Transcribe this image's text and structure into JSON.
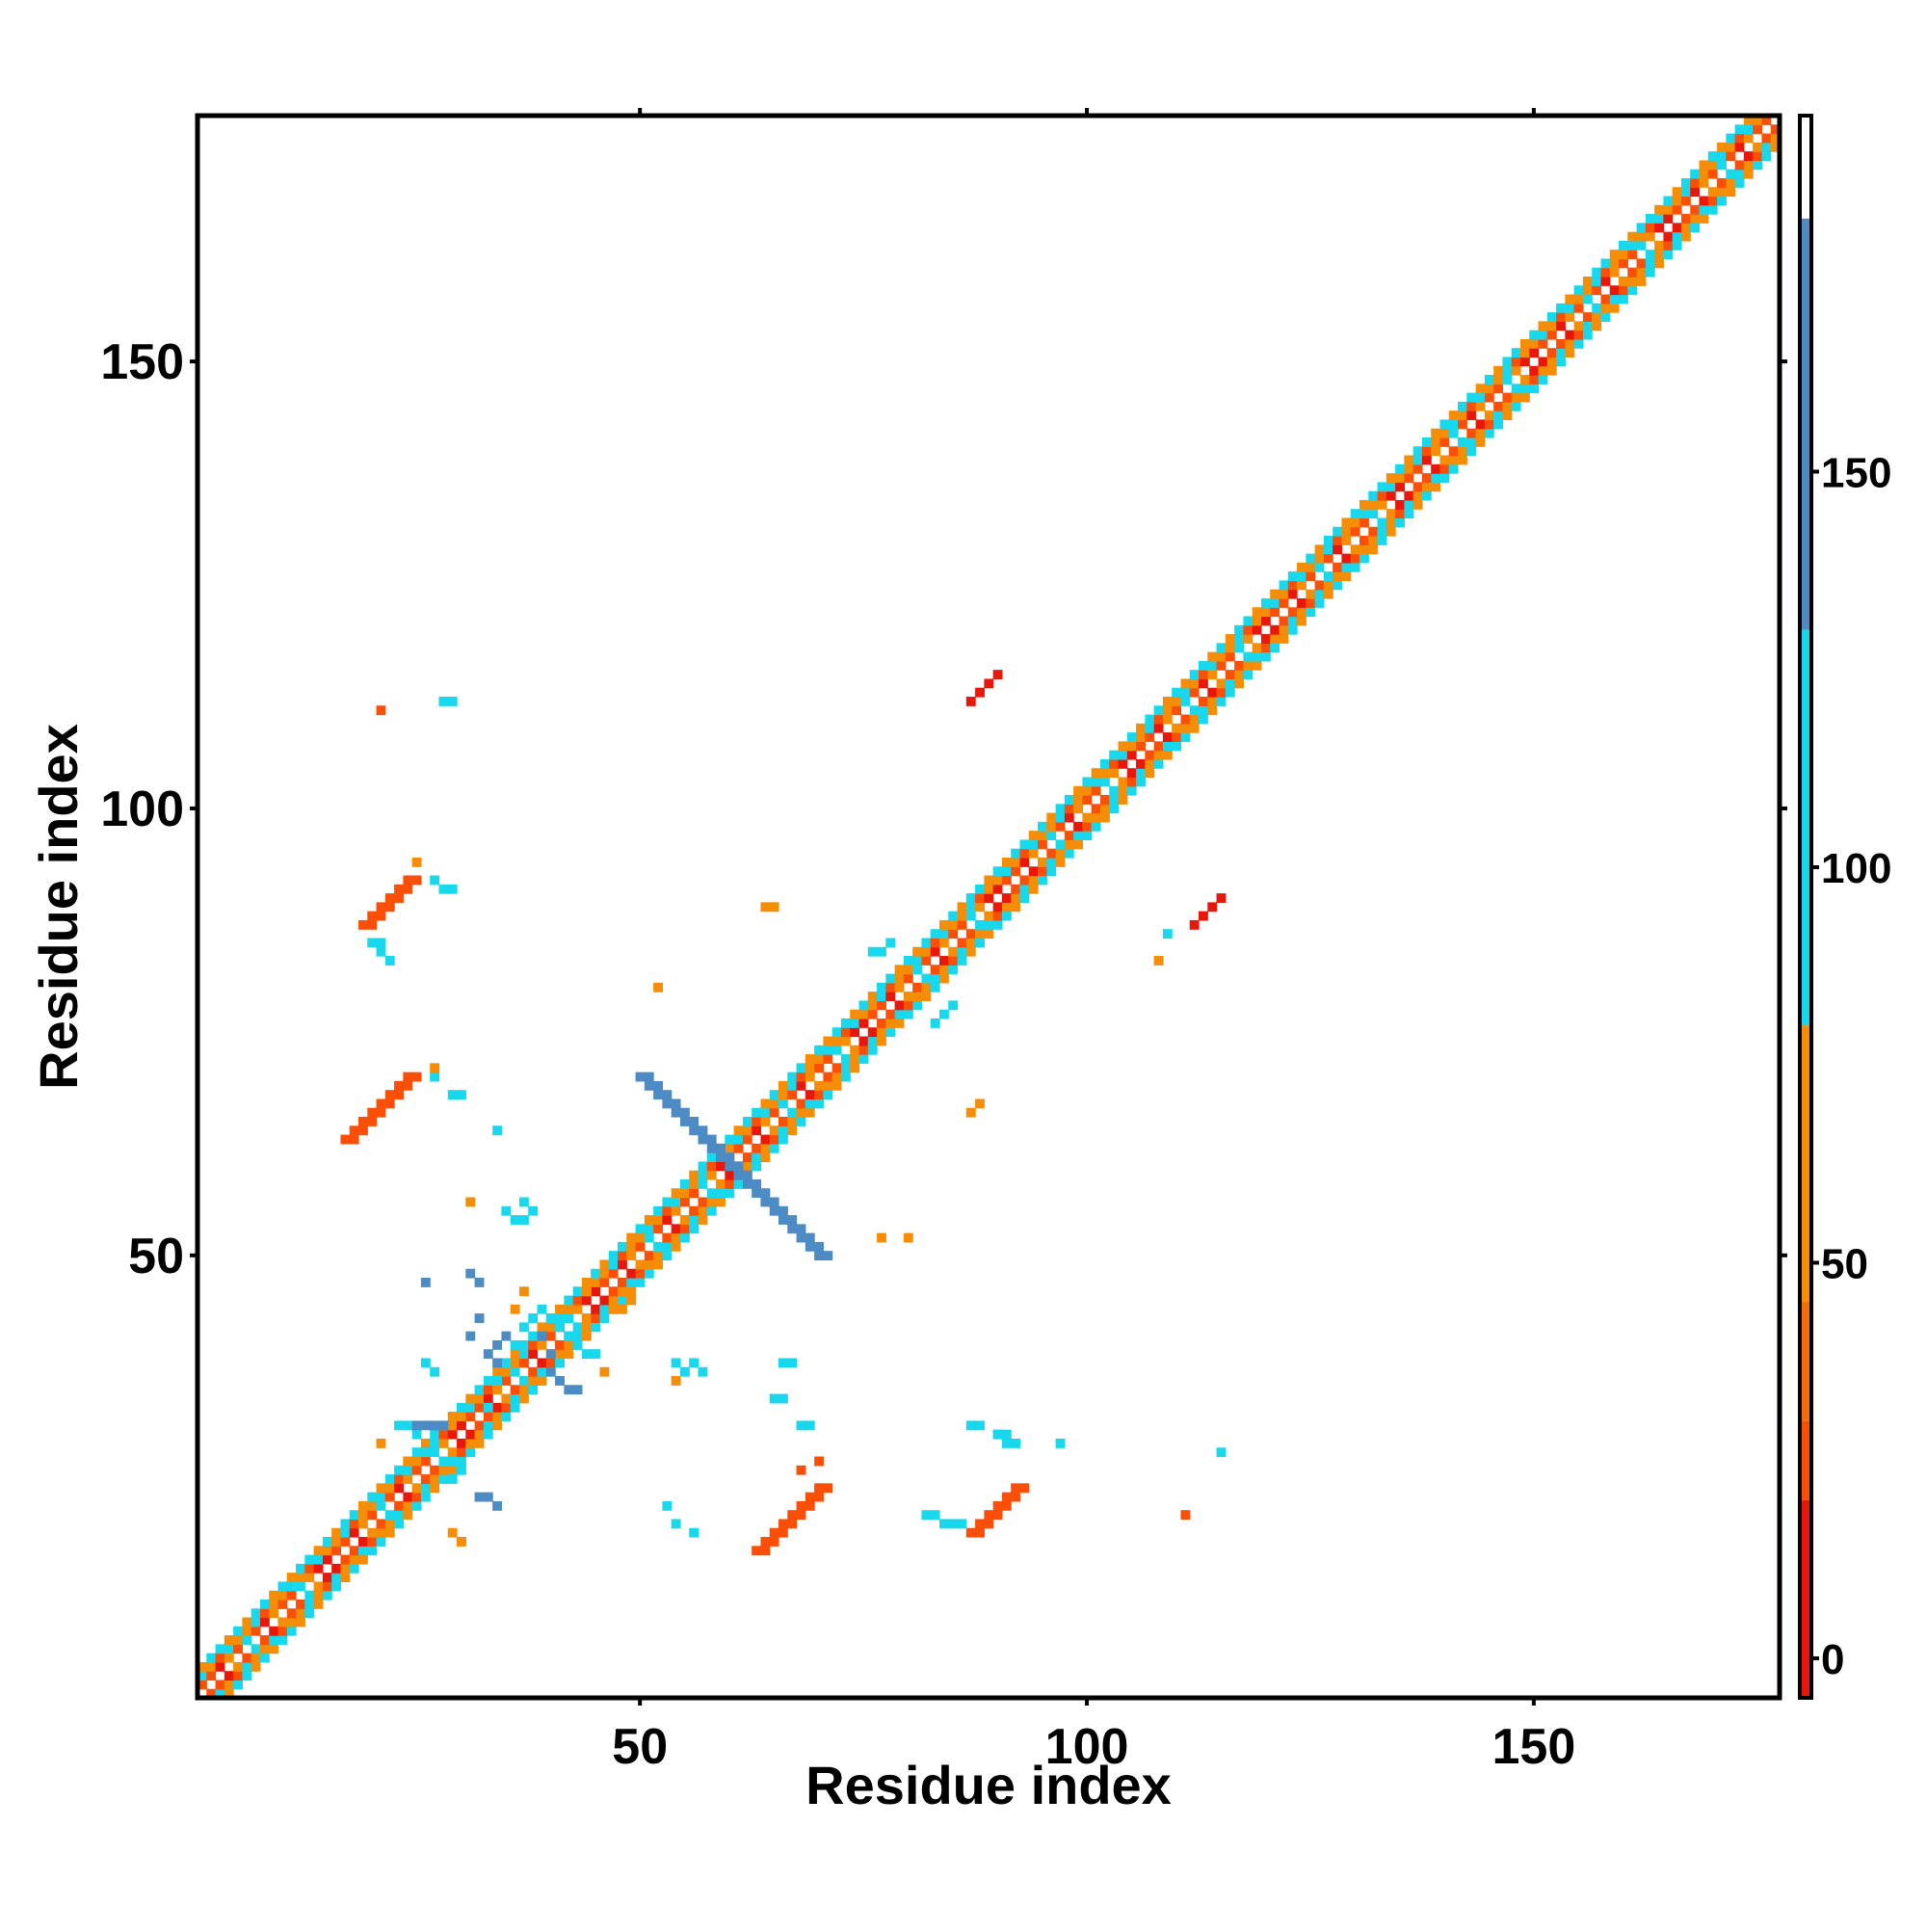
{
  "chart_data": {
    "type": "heatmap",
    "title": "",
    "xlabel": "Residue index",
    "ylabel": "Residue index",
    "xlim": [
      0.5,
      177.5
    ],
    "ylim": [
      0.5,
      177.5
    ],
    "xticks": [
      50,
      100,
      150
    ],
    "yticks": [
      50,
      100,
      150
    ],
    "grid": false,
    "colorbar": {
      "ticks": [
        0,
        50,
        100,
        150
      ],
      "range": [
        -5,
        195
      ],
      "bands": [
        {
          "from": -5,
          "to": 20,
          "color": "#e8170a"
        },
        {
          "from": 20,
          "to": 30,
          "color": "#fb4e06"
        },
        {
          "from": 30,
          "to": 45,
          "color": "#f66b0a"
        },
        {
          "from": 45,
          "to": 80,
          "color": "#f68d06"
        },
        {
          "from": 80,
          "to": 130,
          "color": "#17d8ec"
        },
        {
          "from": 130,
          "to": 182,
          "color": "#4d8bc4"
        },
        {
          "from": 182,
          "to": 195,
          "color": "#ffffff"
        }
      ]
    },
    "colors": {
      "c0": "#e8170a",
      "c1": "#fb4e06",
      "c2": "#f68d06",
      "c3": "#17d8ec",
      "c4": "#4d8bc4"
    },
    "diagonal": {
      "offsets": [
        {
          "offset": 1,
          "levels": [
            0,
            1,
            1,
            0,
            2,
            1,
            3,
            1,
            0,
            2,
            1,
            1,
            3,
            2,
            0
          ]
        },
        {
          "offset": 2,
          "levels": [
            2,
            3,
            2,
            1,
            3,
            2,
            2,
            3,
            1,
            2
          ]
        },
        {
          "offset": 3,
          "levels": [
            3,
            2,
            3,
            3,
            2
          ]
        }
      ],
      "start": 1,
      "end": 177
    },
    "blocks": [
      {
        "level": 4,
        "points": [
          [
            50,
            70
          ],
          [
            51,
            69
          ],
          [
            52,
            68
          ],
          [
            53,
            67
          ],
          [
            54,
            66
          ],
          [
            55,
            65
          ],
          [
            56,
            64
          ],
          [
            57,
            63
          ],
          [
            58,
            62
          ],
          [
            59,
            61
          ],
          [
            60,
            60
          ],
          [
            61,
            59
          ],
          [
            62,
            58
          ],
          [
            63,
            57
          ],
          [
            64,
            56
          ],
          [
            65,
            55
          ],
          [
            66,
            54
          ],
          [
            67,
            53
          ],
          [
            68,
            52
          ],
          [
            69,
            51
          ],
          [
            70,
            50
          ]
        ],
        "width": 2
      },
      {
        "level": 1,
        "points": [
          [
            17,
            63
          ],
          [
            18,
            64
          ],
          [
            19,
            65
          ],
          [
            20,
            66
          ],
          [
            21,
            67
          ],
          [
            22,
            68
          ],
          [
            23,
            69
          ],
          [
            24,
            70
          ]
        ],
        "width": 2
      },
      {
        "level": 1,
        "points": [
          [
            19,
            87
          ],
          [
            20,
            88
          ],
          [
            21,
            89
          ],
          [
            22,
            90
          ],
          [
            23,
            91
          ],
          [
            24,
            92
          ]
        ],
        "width": 2
      },
      {
        "level": 1,
        "points": [
          [
            63,
            17
          ],
          [
            64,
            18
          ],
          [
            65,
            19
          ],
          [
            66,
            20
          ],
          [
            67,
            21
          ],
          [
            68,
            22
          ],
          [
            69,
            23
          ],
          [
            70,
            24
          ]
        ],
        "width": 2
      },
      {
        "level": 1,
        "points": [
          [
            87,
            19
          ],
          [
            88,
            20
          ],
          [
            89,
            21
          ],
          [
            90,
            22
          ],
          [
            91,
            23
          ],
          [
            92,
            24
          ]
        ],
        "width": 2
      },
      {
        "level": 0,
        "points": [
          [
            87,
            112
          ],
          [
            88,
            113
          ],
          [
            89,
            114
          ],
          [
            90,
            115
          ]
        ],
        "width": 1
      },
      {
        "level": 0,
        "points": [
          [
            112,
            87
          ],
          [
            113,
            88
          ],
          [
            114,
            89
          ],
          [
            115,
            90
          ]
        ],
        "width": 1
      },
      {
        "level": 3,
        "points": [
          [
            20,
            85
          ],
          [
            21,
            85
          ],
          [
            21,
            84
          ],
          [
            22,
            83
          ],
          [
            27,
            92
          ],
          [
            28,
            91
          ],
          [
            29,
            91
          ],
          [
            29,
            68
          ],
          [
            30,
            68
          ],
          [
            27,
            70
          ],
          [
            34,
            64
          ],
          [
            35,
            55
          ],
          [
            36,
            54
          ],
          [
            37,
            54
          ],
          [
            37,
            56
          ],
          [
            38,
            55
          ],
          [
            29,
            25
          ],
          [
            30,
            26
          ],
          [
            29,
            27
          ],
          [
            27,
            29
          ],
          [
            26,
            28
          ],
          [
            25,
            30
          ],
          [
            24,
            31
          ],
          [
            23,
            31
          ],
          [
            33,
            33
          ],
          [
            34,
            36
          ],
          [
            35,
            38
          ],
          [
            36,
            40
          ],
          [
            37,
            42
          ],
          [
            38,
            43
          ],
          [
            39,
            44
          ],
          [
            40,
            43
          ],
          [
            41,
            42
          ],
          [
            42,
            41
          ],
          [
            43,
            40
          ],
          [
            44,
            39
          ],
          [
            45,
            39
          ],
          [
            54,
            38
          ],
          [
            55,
            37
          ],
          [
            56,
            38
          ],
          [
            57,
            37
          ],
          [
            65,
            34
          ],
          [
            66,
            34
          ],
          [
            68,
            31
          ],
          [
            69,
            31
          ],
          [
            66,
            38
          ],
          [
            67,
            38
          ],
          [
            76,
            84
          ],
          [
            77,
            84
          ],
          [
            78,
            85
          ],
          [
            83,
            76
          ],
          [
            84,
            77
          ],
          [
            85,
            78
          ],
          [
            87,
            31
          ],
          [
            88,
            31
          ],
          [
            90,
            30
          ],
          [
            91,
            30
          ],
          [
            92,
            29
          ],
          [
            91,
            29
          ],
          [
            82,
            21
          ],
          [
            83,
            21
          ],
          [
            84,
            20
          ],
          [
            85,
            20
          ],
          [
            86,
            20
          ],
          [
            53,
            22
          ],
          [
            54,
            20
          ],
          [
            56,
            19
          ],
          [
            109,
            86
          ],
          [
            115,
            28
          ],
          [
            27,
            37
          ],
          [
            26,
            38
          ],
          [
            28,
            112
          ],
          [
            29,
            112
          ],
          [
            90,
            30
          ],
          [
            97,
            29
          ]
        ],
        "width": 1
      },
      {
        "level": 4,
        "points": [
          [
            25,
            31
          ],
          [
            26,
            31
          ],
          [
            27,
            31
          ],
          [
            28,
            31
          ],
          [
            33,
            39
          ],
          [
            34,
            38
          ],
          [
            34,
            40
          ],
          [
            35,
            41
          ],
          [
            40,
            37
          ],
          [
            41,
            36
          ],
          [
            42,
            35
          ],
          [
            43,
            35
          ],
          [
            32,
            23
          ],
          [
            33,
            23
          ],
          [
            34,
            22
          ],
          [
            26,
            47
          ],
          [
            31,
            48
          ],
          [
            32,
            47
          ],
          [
            31,
            41
          ],
          [
            32,
            43
          ],
          [
            40,
            39
          ],
          [
            39,
            41
          ]
        ],
        "width": 1
      },
      {
        "level": 2,
        "points": [
          [
            25,
            94
          ],
          [
            52,
            80
          ],
          [
            65,
            89
          ],
          [
            64,
            89
          ],
          [
            77,
            52
          ],
          [
            80,
            52
          ],
          [
            87,
            66
          ],
          [
            88,
            67
          ],
          [
            108,
            83
          ],
          [
            27,
            71
          ],
          [
            37,
            46
          ],
          [
            44,
            46
          ],
          [
            47,
            44
          ],
          [
            48,
            44
          ],
          [
            49,
            45
          ],
          [
            46,
            37
          ],
          [
            36,
            44
          ],
          [
            29,
            19
          ],
          [
            30,
            18
          ],
          [
            21,
            29
          ],
          [
            54,
            36
          ],
          [
            31,
            56
          ]
        ],
        "width": 1
      },
      {
        "level": 1,
        "points": [
          [
            21,
            111
          ],
          [
            111,
            21
          ],
          [
            70,
            27
          ],
          [
            68,
            26
          ]
        ],
        "width": 1
      }
    ]
  }
}
